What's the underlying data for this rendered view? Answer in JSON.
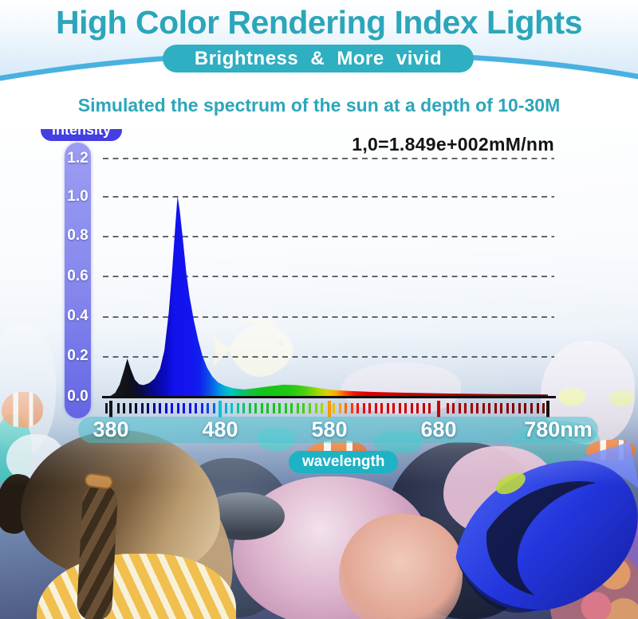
{
  "header": {
    "title": "High Color Rendering Index Lights",
    "badge": "Brightness & More vivid",
    "subtitle": "Simulated the spectrum of the sun at a depth of 10-30M",
    "title_color": "#2ba6ba",
    "badge_bg": "#2eafc2",
    "wave_color": "#49b1e0"
  },
  "chart": {
    "y_axis_label": "intensity",
    "x_axis_label": "wavelength",
    "annotation": "1,0=1.849e+002mM/nm",
    "y_axis_bar_colors": [
      "#9b9df3",
      "#6365e5"
    ],
    "intensity_pill_bg": "#443fe2",
    "wavelength_pill_bg": "#1db2c4"
  },
  "chart_data": {
    "type": "area",
    "title": "Simulated the spectrum of the sun at a depth of 10-30M",
    "xlabel": "wavelength",
    "ylabel": "intensity",
    "x_range_nm": [
      380,
      780
    ],
    "ylim": [
      0,
      1.2
    ],
    "grid": "dashed horizontal",
    "legend": "none",
    "y_ticks": [
      "1.2",
      "1.0",
      "0.8",
      "0.6",
      "0.4",
      "0.2",
      "0.0"
    ],
    "x_tick_labels": [
      "380",
      "480",
      "580",
      "680",
      "780nm"
    ],
    "x_tick_values_nm": [
      380,
      480,
      580,
      680,
      780
    ],
    "annotation": "1,0=1.849e+002mM/nm",
    "peaks": [
      {
        "nm": 395,
        "intensity": 0.19
      },
      {
        "nm": 441,
        "intensity": 1.0
      },
      {
        "nm": 540,
        "intensity": 0.06
      }
    ],
    "points": [
      [
        380,
        0.005
      ],
      [
        384,
        0.02
      ],
      [
        388,
        0.06
      ],
      [
        392,
        0.13
      ],
      [
        395,
        0.19
      ],
      [
        398,
        0.14
      ],
      [
        402,
        0.085
      ],
      [
        406,
        0.062
      ],
      [
        410,
        0.058
      ],
      [
        415,
        0.068
      ],
      [
        420,
        0.09
      ],
      [
        425,
        0.14
      ],
      [
        429,
        0.23
      ],
      [
        433,
        0.42
      ],
      [
        436,
        0.62
      ],
      [
        439,
        0.85
      ],
      [
        441,
        1.0
      ],
      [
        443,
        0.93
      ],
      [
        446,
        0.78
      ],
      [
        449,
        0.62
      ],
      [
        452,
        0.5
      ],
      [
        456,
        0.38
      ],
      [
        460,
        0.28
      ],
      [
        464,
        0.2
      ],
      [
        468,
        0.145
      ],
      [
        473,
        0.1
      ],
      [
        478,
        0.072
      ],
      [
        484,
        0.055
      ],
      [
        492,
        0.042
      ],
      [
        502,
        0.036
      ],
      [
        512,
        0.042
      ],
      [
        525,
        0.052
      ],
      [
        538,
        0.06
      ],
      [
        550,
        0.058
      ],
      [
        562,
        0.05
      ],
      [
        574,
        0.04
      ],
      [
        585,
        0.033
      ],
      [
        600,
        0.028
      ],
      [
        620,
        0.024
      ],
      [
        650,
        0.02
      ],
      [
        690,
        0.016
      ],
      [
        730,
        0.013
      ],
      [
        780,
        0.011
      ]
    ],
    "spectrum_colors": [
      [
        380,
        "#1a1a1a"
      ],
      [
        396,
        "#101018"
      ],
      [
        406,
        "#0b0b3c"
      ],
      [
        418,
        "#08088f"
      ],
      [
        430,
        "#0a0ac8"
      ],
      [
        438,
        "#1212ee"
      ],
      [
        452,
        "#1414ee"
      ],
      [
        462,
        "#1020ee"
      ],
      [
        472,
        "#0a58e8"
      ],
      [
        482,
        "#00a0e0"
      ],
      [
        490,
        "#00c4c4"
      ],
      [
        500,
        "#00c47a"
      ],
      [
        510,
        "#12c435"
      ],
      [
        522,
        "#12c418"
      ],
      [
        545,
        "#1ec912"
      ],
      [
        560,
        "#4ed012"
      ],
      [
        572,
        "#9ed805"
      ],
      [
        581,
        "#e2ce00"
      ],
      [
        589,
        "#ffa400"
      ],
      [
        597,
        "#ff5400"
      ],
      [
        606,
        "#f21600"
      ],
      [
        616,
        "#e00000"
      ],
      [
        645,
        "#cf0000"
      ],
      [
        685,
        "#b40000"
      ],
      [
        725,
        "#940000"
      ],
      [
        780,
        "#6e0000"
      ]
    ],
    "major_tick_colors": [
      "#151515",
      "#00c2d6",
      "#ff9800",
      "#cc0000",
      "#151515"
    ],
    "minor_tick_count": 75
  }
}
